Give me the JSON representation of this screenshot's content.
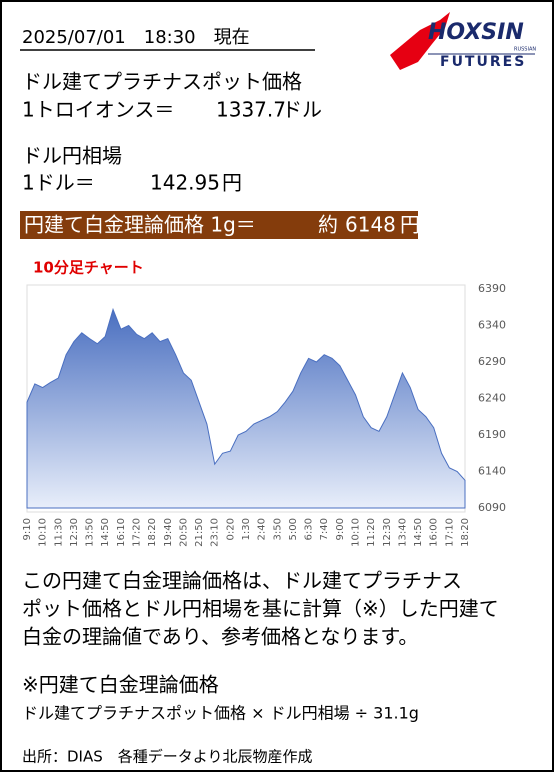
{
  "header": {
    "timestamp": "2025/07/01　18:30　現在",
    "logo": {
      "name": "HOXSIN",
      "tag": "RUSSIAN",
      "sub": "FUTURES"
    }
  },
  "platinum": {
    "label": "ドル建てプラチナスポット価格",
    "unit_label": "1トロイオンス＝",
    "value": 1337.7,
    "unit": "ドル"
  },
  "usdjpy": {
    "label": "ドル円相場",
    "unit_label": "1ドル＝",
    "value": 142.95,
    "unit": "円"
  },
  "theory": {
    "label": "円建て白金理論価格 1g＝",
    "approx": "約",
    "value": 6148,
    "unit": "円"
  },
  "chart_data": {
    "type": "area",
    "title": "10分足チャート",
    "color": "#4a6fc0",
    "grid": false,
    "categories": [
      "9:10",
      null,
      "10:10",
      null,
      "11:30",
      null,
      "12:30",
      null,
      "13:50",
      null,
      "14:50",
      null,
      "16:10",
      null,
      "17:20",
      null,
      "18:20",
      null,
      "19:40",
      null,
      "20:50",
      null,
      "21:50",
      null,
      "23:10",
      null,
      "0:20",
      null,
      "1:30",
      null,
      "2:40",
      null,
      "3:50",
      null,
      "5:00",
      null,
      "6:30",
      null,
      "7:40",
      null,
      "9:00",
      null,
      "10:10",
      null,
      "11:20",
      null,
      "12:30",
      null,
      "13:40",
      null,
      "14:50",
      null,
      "16:00",
      null,
      "17:10",
      null,
      "18:20"
    ],
    "values": [
      6235,
      6260,
      6255,
      6262,
      6268,
      6300,
      6318,
      6330,
      6322,
      6315,
      6325,
      6362,
      6335,
      6340,
      6328,
      6322,
      6330,
      6318,
      6322,
      6300,
      6275,
      6265,
      6235,
      6205,
      6150,
      6165,
      6168,
      6190,
      6195,
      6205,
      6210,
      6215,
      6222,
      6235,
      6250,
      6275,
      6295,
      6290,
      6300,
      6295,
      6285,
      6265,
      6245,
      6215,
      6200,
      6195,
      6215,
      6245,
      6275,
      6255,
      6225,
      6215,
      6200,
      6165,
      6145,
      6140,
      6128
    ],
    "ylim": [
      6090,
      6390
    ],
    "yticks": [
      6090,
      6140,
      6190,
      6240,
      6290,
      6340,
      6390
    ]
  },
  "note": {
    "lines": [
      "この円建て白金理論価格は、ドル建てプラチナス",
      "ポット価格とドル円相場を基に計算（※）した円建て",
      "白金の理論値であり、参考価格となります。"
    ],
    "formula_title": "※円建て白金理論価格",
    "formula": "ドル建てプラチナスポット価格 × ドル円相場 ÷ 31.1g"
  },
  "source": "出所：DIAS　各種データより北辰物産作成"
}
